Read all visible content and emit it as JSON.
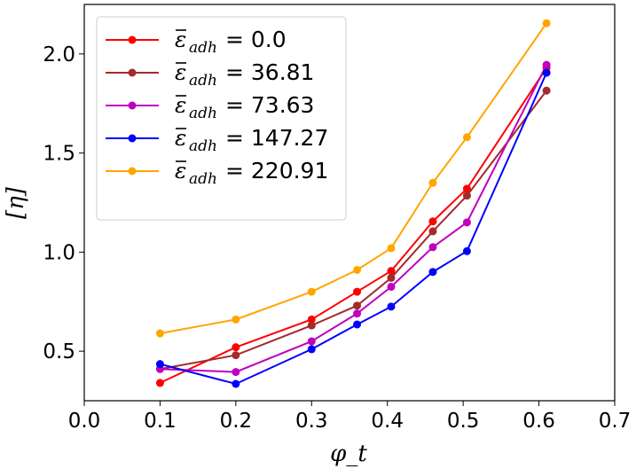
{
  "chart_data": {
    "type": "line",
    "title": "",
    "xlabel": "φ_t",
    "ylabel": "[η]",
    "xlim": [
      0.0,
      0.7
    ],
    "ylim": [
      0.25,
      2.25
    ],
    "xticks": [
      0.0,
      0.1,
      0.2,
      0.3,
      0.4,
      0.5,
      0.6,
      0.7
    ],
    "xtick_labels": [
      "0.0",
      "0.1",
      "0.2",
      "0.3",
      "0.4",
      "0.5",
      "0.6",
      "0.7"
    ],
    "yticks": [
      0.5,
      1.0,
      1.5,
      2.0
    ],
    "ytick_labels": [
      "0.5",
      "1.0",
      "1.5",
      "2.0"
    ],
    "grid": false,
    "legend_position": "top-left",
    "x": [
      0.1,
      0.2,
      0.3,
      0.36,
      0.405,
      0.46,
      0.505,
      0.61
    ],
    "series": [
      {
        "name": "ε̄_adh = 0.0",
        "legend_value": "0.0",
        "color": "#ff0000",
        "values": [
          0.34,
          0.52,
          0.66,
          0.8,
          0.905,
          1.155,
          1.32,
          1.93
        ]
      },
      {
        "name": "ε̄_adh = 36.81",
        "legend_value": "36.81",
        "color": "#a52a2a",
        "values": [
          0.41,
          0.48,
          0.63,
          0.73,
          0.87,
          1.105,
          1.285,
          1.815
        ]
      },
      {
        "name": "ε̄_adh = 73.63",
        "legend_value": "73.63",
        "color": "#bf00bf",
        "values": [
          0.41,
          0.395,
          0.55,
          0.69,
          0.825,
          1.025,
          1.15,
          1.945
        ]
      },
      {
        "name": "ε̄_adh = 147.27",
        "legend_value": "147.27",
        "color": "#0000ff",
        "values": [
          0.435,
          0.335,
          0.51,
          0.635,
          0.725,
          0.9,
          1.005,
          1.905
        ]
      },
      {
        "name": "ε̄_adh = 220.91",
        "legend_value": "220.91",
        "color": "#ffa500",
        "values": [
          0.59,
          0.66,
          0.8,
          0.91,
          1.02,
          1.35,
          1.58,
          2.155
        ]
      }
    ]
  }
}
